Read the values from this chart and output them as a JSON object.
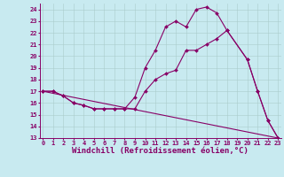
{
  "background_color": "#c8eaf0",
  "grid_color": "#aacccc",
  "line_color": "#880066",
  "marker_color": "#880066",
  "series1_x": [
    0,
    1,
    2,
    3,
    4,
    5,
    6,
    7,
    8,
    9,
    10,
    11,
    12,
    13,
    14,
    15,
    16,
    17,
    18,
    20,
    21,
    22,
    23
  ],
  "series1_y": [
    17.0,
    17.0,
    16.6,
    16.0,
    15.8,
    15.5,
    15.5,
    15.5,
    15.5,
    16.5,
    19.0,
    20.5,
    22.5,
    23.0,
    22.5,
    24.0,
    24.2,
    23.7,
    22.2,
    19.7,
    17.0,
    14.5,
    13.0
  ],
  "series2_x": [
    0,
    1,
    2,
    3,
    4,
    5,
    6,
    7,
    8,
    9,
    10,
    11,
    12,
    13,
    14,
    15,
    16,
    17,
    18,
    20,
    21,
    22,
    23
  ],
  "series2_y": [
    17.0,
    17.0,
    16.6,
    16.0,
    15.8,
    15.5,
    15.5,
    15.5,
    15.5,
    15.5,
    17.0,
    18.0,
    18.5,
    18.8,
    20.5,
    20.5,
    21.0,
    21.5,
    22.2,
    19.7,
    17.0,
    14.5,
    13.0
  ],
  "series3_x": [
    0,
    23
  ],
  "series3_y": [
    17.0,
    13.0
  ],
  "xlim": [
    0,
    23
  ],
  "ylim": [
    13,
    24.5
  ],
  "yticks": [
    13,
    14,
    15,
    16,
    17,
    18,
    19,
    20,
    21,
    22,
    23,
    24
  ],
  "xticks": [
    0,
    1,
    2,
    3,
    4,
    5,
    6,
    7,
    8,
    9,
    10,
    11,
    12,
    13,
    14,
    15,
    16,
    17,
    18,
    19,
    20,
    21,
    22,
    23
  ],
  "xlabel": "Windchill (Refroidissement éolien,°C)",
  "xlabel_fontsize": 6.5,
  "tick_fontsize": 5.0,
  "linewidth": 0.8,
  "markersize": 2.0
}
